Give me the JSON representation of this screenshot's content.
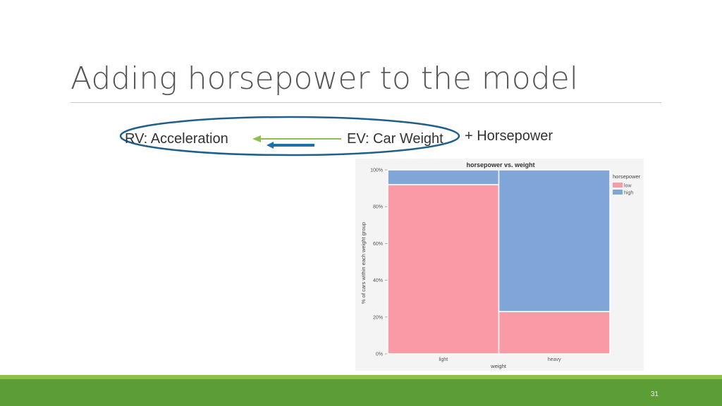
{
  "slide": {
    "title": "Adding horsepower to the model",
    "page_number": "31"
  },
  "diagram": {
    "rv_label": "RV: Acceleration",
    "ev_label": "EV: Car Weight",
    "added_label": "+ Horsepower",
    "colors": {
      "ellipse": "#1f5f8b",
      "arrow_green": "#8cc04b",
      "arrow_blue": "#1f6fa8"
    }
  },
  "chart_data": {
    "type": "bar",
    "stacked": "percent",
    "title": "horsepower vs. weight",
    "xlabel": "weight",
    "ylabel": "% of cars within each weight group",
    "categories": [
      "light",
      "heavy"
    ],
    "category_widths": [
      0.5,
      0.5
    ],
    "series": [
      {
        "name": "low",
        "values": [
          92,
          23
        ],
        "color": "#fb9aa7"
      },
      {
        "name": "high",
        "values": [
          8,
          77
        ],
        "color": "#80a6d8"
      }
    ],
    "legend_title": "horsepower",
    "legend_position": "right",
    "yticks": [
      "0%",
      "20%",
      "40%",
      "60%",
      "80%",
      "100%"
    ],
    "ylim": [
      0,
      100
    ]
  }
}
